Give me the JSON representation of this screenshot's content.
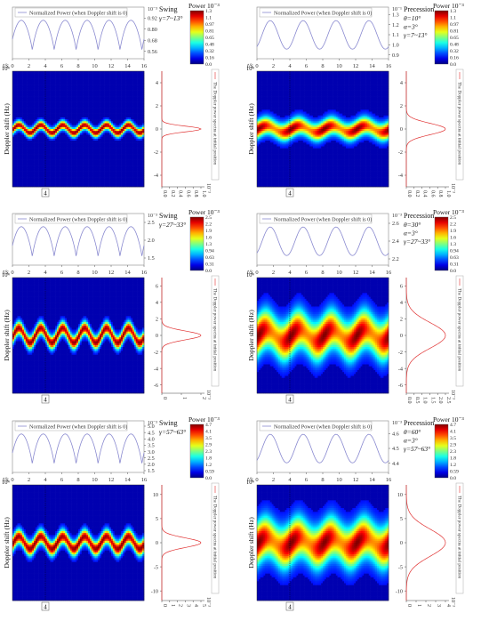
{
  "colors": {
    "line": "#8a8ad0",
    "spectrum": "#e03030",
    "jet": [
      "#00007f",
      "#0000ff",
      "#007fff",
      "#00ffff",
      "#7fff7f",
      "#ffff00",
      "#ff7f00",
      "#ff0000",
      "#7f0000"
    ]
  },
  "panels": [
    {
      "mode": "Swing",
      "params": [
        "γ=7~13°"
      ],
      "legend": "Normalized Power (when Doppler shift is 0)",
      "power_exponent_label": "10⁻³",
      "power_ticks": [
        "0.92",
        "0.80",
        "0.68",
        "0.56"
      ],
      "power_range": [
        0.5,
        0.98
      ],
      "periods": 6,
      "xlabel": "t/s",
      "x_ticks": [
        "0",
        "2",
        "4",
        "6",
        "8",
        "10",
        "12",
        "14",
        "16"
      ],
      "colorbar_title": "Power 10⁻³",
      "colorbar_ticks": [
        "1.3",
        "1.1",
        "0.97",
        "0.81",
        "0.65",
        "0.48",
        "0.32",
        "0.16",
        "0.0"
      ],
      "ylabel": "Doppler shift (Hz)",
      "y_exponent": "10⁴",
      "y_ticks": [
        "4",
        "2",
        "0",
        "-2",
        "-4"
      ],
      "y_range": [
        -5,
        5
      ],
      "band_amp": 0.35,
      "band_width": 0.35,
      "marker": "4",
      "spectrum_label": "The Doppler power spectra at initial position",
      "spectrum_ticks": [
        "0.0",
        "0.2",
        "0.4",
        "0.6",
        "0.8",
        "1.0"
      ],
      "spectrum_exponent": "10⁻³",
      "spectrum_width": 0.35
    },
    {
      "mode": "Precession",
      "params": [
        "θ=10°",
        "α=3°",
        "γ=7~13°"
      ],
      "legend": "Normalized Power (when Doppler shift is 0)",
      "power_exponent_label": "10⁻¹",
      "power_ticks": [
        "1.3",
        "1.2",
        "1.1",
        "1.0",
        "0.9"
      ],
      "power_range": [
        0.88,
        1.32
      ],
      "periods": 4,
      "xlabel": "t/s",
      "x_ticks": [
        "0",
        "2",
        "4",
        "6",
        "8",
        "10",
        "12",
        "14",
        "16"
      ],
      "colorbar_title": "Power 10⁻³",
      "colorbar_ticks": [
        "1.3",
        "1.1",
        "0.97",
        "0.81",
        "0.65",
        "0.48",
        "0.32",
        "0.16",
        "0.0"
      ],
      "ylabel": "Doppler shift (Hz)",
      "y_exponent": "10⁴",
      "y_ticks": [
        "4",
        "2",
        "0",
        "-2",
        "-4"
      ],
      "y_range": [
        -5,
        5
      ],
      "band_amp": 0.3,
      "band_width": 0.7,
      "marker": "4",
      "spectrum_label": "The Doppler power spectra at initial position",
      "spectrum_ticks": [
        "0.0",
        "0.2",
        "0.4",
        "0.6",
        "0.8",
        "1.0"
      ],
      "spectrum_exponent": "10⁻³",
      "spectrum_width": 0.7
    },
    {
      "mode": "Swing",
      "params": [
        "γ=27~33°"
      ],
      "legend": "Normalized Power (when Doppler shift is 0)",
      "power_exponent_label": "10⁻³",
      "power_ticks": [
        "2.5",
        "2.0",
        "1.5"
      ],
      "power_range": [
        1.35,
        2.6
      ],
      "periods": 6,
      "xlabel": "t/s",
      "x_ticks": [
        "0",
        "2",
        "4",
        "6",
        "8",
        "10",
        "12",
        "14",
        "16"
      ],
      "colorbar_title": "Power 10⁻³",
      "colorbar_ticks": [
        "2.5",
        "2.2",
        "1.9",
        "1.6",
        "1.3",
        "0.94",
        "0.63",
        "0.31",
        "0.0"
      ],
      "ylabel": "Doppler shift (Hz)",
      "y_exponent": "10⁴",
      "y_ticks": [
        "6",
        "4",
        "2",
        "0",
        "-2",
        "-4",
        "-6"
      ],
      "y_range": [
        -7,
        7
      ],
      "band_amp": 0.9,
      "band_width": 0.75,
      "marker": "4",
      "spectrum_label": "The Doppler power spectra at initial position",
      "spectrum_ticks": [
        "0",
        "1",
        "2"
      ],
      "spectrum_exponent": "10⁻³",
      "spectrum_width": 0.75
    },
    {
      "mode": "Precession",
      "params": [
        "θ=30°",
        "α=3°",
        "γ=27~33°"
      ],
      "legend": "Normalized Power (when Doppler shift is 0)",
      "power_exponent_label": "10⁻³",
      "power_ticks": [
        "2.6",
        "2.4",
        "2.2"
      ],
      "power_range": [
        2.15,
        2.65
      ],
      "periods": 4,
      "xlabel": "t/s",
      "x_ticks": [
        "0",
        "2",
        "4",
        "6",
        "8",
        "10",
        "12",
        "14",
        "16"
      ],
      "colorbar_title": "Power 10⁻³",
      "colorbar_ticks": [
        "2.5",
        "2.2",
        "1.9",
        "1.6",
        "1.3",
        "0.94",
        "0.63",
        "0.31",
        "0.0"
      ],
      "ylabel": "Doppler shift (Hz)",
      "y_exponent": "10⁴",
      "y_ticks": [
        "6",
        "4",
        "2",
        "0",
        "-2",
        "-4",
        "-6"
      ],
      "y_range": [
        -7,
        7
      ],
      "band_amp": 0.8,
      "band_width": 2.2,
      "marker": "4",
      "spectrum_label": "The Doppler power spectra at initial position",
      "spectrum_ticks": [
        "0.0",
        "0.5",
        "1.0",
        "1.5",
        "2.0",
        "2.5"
      ],
      "spectrum_exponent": "10⁻³",
      "spectrum_width": 2.2
    },
    {
      "mode": "Swing",
      "params": [
        "γ=57~63°"
      ],
      "legend": "Normalized Power (when Doppler shift is 0)",
      "power_exponent_label": "10⁻³",
      "power_ticks": [
        "5.0",
        "4.5",
        "4.0",
        "3.5",
        "3.0",
        "2.5",
        "2.0",
        "1.5"
      ],
      "power_range": [
        1.5,
        5.0
      ],
      "periods": 6,
      "xlabel": "t/s",
      "x_ticks": [
        "0",
        "2",
        "4",
        "6",
        "8",
        "10",
        "12",
        "14",
        "16"
      ],
      "colorbar_title": "Power 10⁻³",
      "colorbar_ticks": [
        "4.7",
        "4.1",
        "3.5",
        "2.9",
        "2.3",
        "1.8",
        "1.2",
        "0.59",
        "0.0"
      ],
      "ylabel": "Doppler shift (Hz)",
      "y_exponent": "10⁴",
      "y_ticks": [
        "10",
        "5",
        "0",
        "-5",
        "-10"
      ],
      "y_range": [
        -12,
        12
      ],
      "band_amp": 1.3,
      "band_width": 1.4,
      "marker": "4",
      "spectrum_label": "The Doppler power spectra at initial position",
      "spectrum_ticks": [
        "0",
        "1",
        "2",
        "3",
        "4",
        "5"
      ],
      "spectrum_exponent": "10⁻³",
      "spectrum_width": 1.4
    },
    {
      "mode": "Precession",
      "params": [
        "θ=60°",
        "α=3°",
        "γ=57~63°"
      ],
      "legend": "Normalized Power (when Doppler shift is 0)",
      "power_exponent_label": "10⁻³",
      "power_ticks": [
        "4.6",
        "4.5",
        "4.4"
      ],
      "power_range": [
        4.35,
        4.65
      ],
      "periods": 4,
      "xlabel": "t/s",
      "x_ticks": [
        "0",
        "2",
        "4",
        "6",
        "8",
        "10",
        "12",
        "14",
        "16"
      ],
      "colorbar_title": "Power 10⁻³",
      "colorbar_ticks": [
        "4.7",
        "4.1",
        "3.5",
        "2.9",
        "2.3",
        "1.8",
        "1.2",
        "0.59",
        "0.0"
      ],
      "ylabel": "Doppler shift (Hz)",
      "y_exponent": "10⁴",
      "y_ticks": [
        "10",
        "5",
        "0",
        "-5",
        "-10"
      ],
      "y_range": [
        -12,
        12
      ],
      "band_amp": 1.2,
      "band_width": 4.0,
      "marker": "4",
      "spectrum_label": "The Doppler power spectra at initial position",
      "spectrum_ticks": [
        "0",
        "1",
        "2",
        "3",
        "4"
      ],
      "spectrum_exponent": "10⁻³",
      "spectrum_width": 4.0
    }
  ],
  "chart_data": [
    {
      "type": "heatmap",
      "mode": "Swing",
      "params": [
        "γ=7~13°"
      ],
      "ylabel": "Doppler shift (Hz)",
      "ylim": [
        -5,
        5
      ],
      "xlim": [
        0,
        16
      ],
      "colorbar_range": [
        0.0,
        1.3
      ],
      "oscillation_periods": 6
    },
    {
      "type": "heatmap",
      "mode": "Precession",
      "params": [
        "θ=10°",
        "α=3°",
        "γ=7~13°"
      ],
      "ylabel": "Doppler shift (Hz)",
      "ylim": [
        -5,
        5
      ],
      "xlim": [
        0,
        16
      ],
      "colorbar_range": [
        0.0,
        1.3
      ],
      "oscillation_periods": 4
    },
    {
      "type": "heatmap",
      "mode": "Swing",
      "params": [
        "γ=27~33°"
      ],
      "ylabel": "Doppler shift (Hz)",
      "ylim": [
        -7,
        7
      ],
      "xlim": [
        0,
        16
      ],
      "colorbar_range": [
        0.0,
        2.5
      ],
      "oscillation_periods": 6
    },
    {
      "type": "heatmap",
      "mode": "Precession",
      "params": [
        "θ=30°",
        "α=3°",
        "γ=27~33°"
      ],
      "ylabel": "Doppler shift (Hz)",
      "ylim": [
        -7,
        7
      ],
      "xlim": [
        0,
        16
      ],
      "colorbar_range": [
        0.0,
        2.5
      ],
      "oscillation_periods": 4
    },
    {
      "type": "heatmap",
      "mode": "Swing",
      "params": [
        "γ=57~63°"
      ],
      "ylabel": "Doppler shift (Hz)",
      "ylim": [
        -12,
        12
      ],
      "xlim": [
        0,
        16
      ],
      "colorbar_range": [
        0.0,
        4.7
      ],
      "oscillation_periods": 6
    },
    {
      "type": "heatmap",
      "mode": "Precession",
      "params": [
        "θ=60°",
        "α=3°",
        "γ=57~63°"
      ],
      "ylabel": "Doppler shift (Hz)",
      "ylim": [
        -12,
        12
      ],
      "xlim": [
        0,
        16
      ],
      "colorbar_range": [
        0.0,
        4.7
      ],
      "oscillation_periods": 4
    }
  ]
}
